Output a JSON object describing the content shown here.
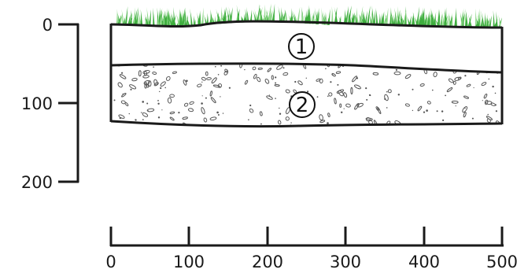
{
  "vertical_scale": {
    "ticks": [
      "0",
      "100",
      "200"
    ]
  },
  "horizontal_scale": {
    "ticks": [
      "0",
      "100",
      "200",
      "300",
      "400",
      "500"
    ]
  },
  "layers": [
    {
      "number": "1",
      "fill": "#ffffff",
      "texture": "none"
    },
    {
      "number": "2",
      "fill": "#ffffff",
      "texture": "gravel"
    }
  ],
  "colors": {
    "grass": "#3fae3f",
    "grass_light": "#8fd88a",
    "line": "#1a1a1a",
    "gravel": "#555555"
  }
}
